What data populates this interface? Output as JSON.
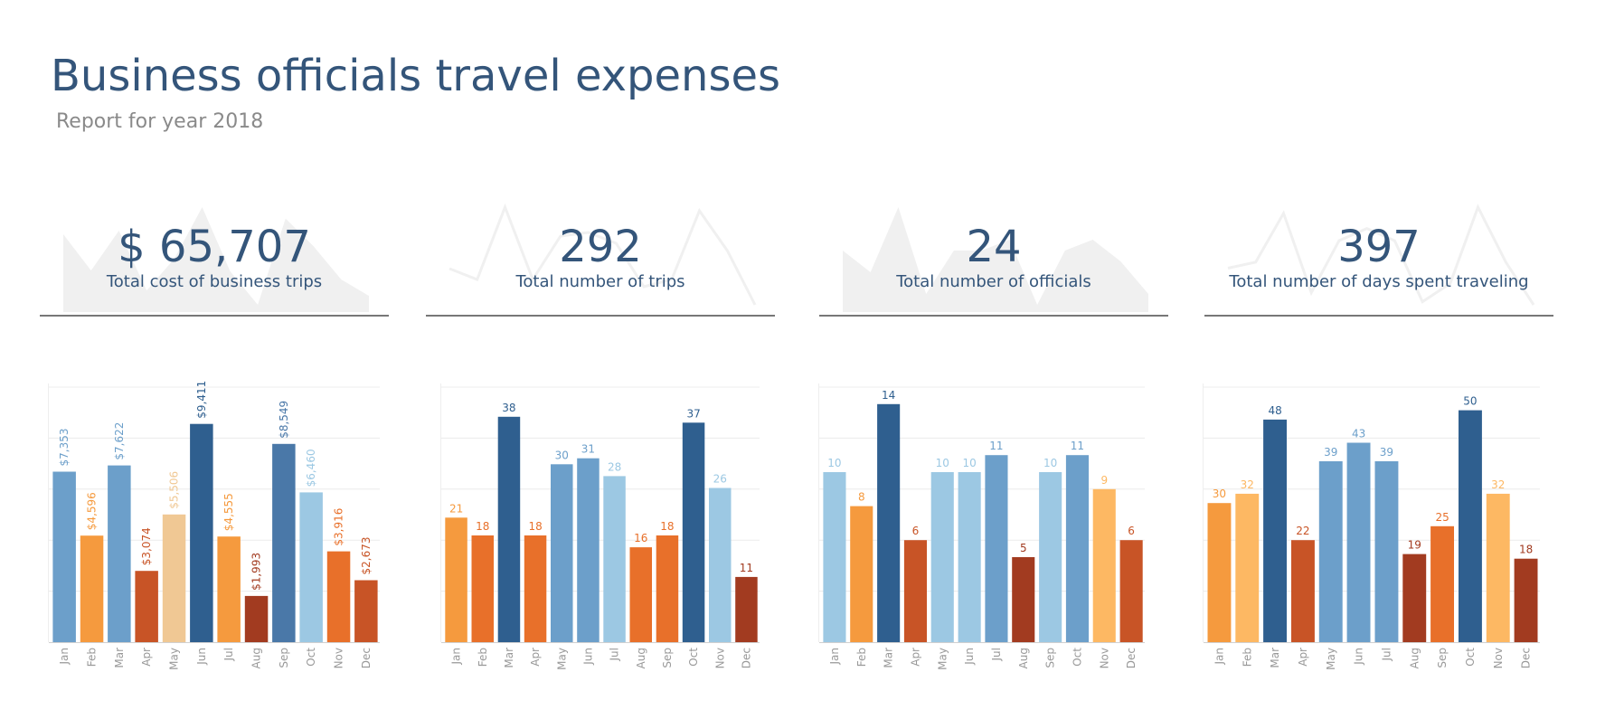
{
  "header": {
    "title": "Business officials travel expenses",
    "subtitle": "Report for  year 2018"
  },
  "kpis": [
    {
      "value": "$ 65,707",
      "label": "Total cost of business trips",
      "spark_style": "area"
    },
    {
      "value": "292",
      "label": "Total number of trips",
      "spark_style": "line"
    },
    {
      "value": "24",
      "label": "Total number of officials",
      "spark_style": "area"
    },
    {
      "value": "397",
      "label": "Total number of days spent traveling",
      "spark_style": "line"
    }
  ],
  "palette": {
    "navy": "#2f5f8f",
    "blue": "#4a78a8",
    "mid_blue": "#6c9fca",
    "light_blue": "#9cc8e3",
    "light_orange": "#fdb863",
    "orange": "#f59a3e",
    "dark_orange": "#e8702a",
    "red_orange": "#c85426",
    "brown": "#a23b20",
    "tan": "#f0c894",
    "spark": "#f0f0f0",
    "axis": "#999999",
    "grid": "#ececec"
  },
  "chart_data": [
    {
      "type": "bar",
      "categories": [
        "Jan",
        "Feb",
        "Mar",
        "Apr",
        "May",
        "Jun",
        "Jul",
        "Aug",
        "Sep",
        "Oct",
        "Nov",
        "Dec"
      ],
      "values": [
        7353,
        4596,
        7622,
        3074,
        5506,
        9411,
        4555,
        1993,
        8549,
        6460,
        3916,
        2673
      ],
      "labels": [
        "$7,353",
        "$4,596",
        "$7,622",
        "$3,074",
        "$5,506",
        "$9,411",
        "$4,555",
        "$1,993",
        "$8,549",
        "$6,460",
        "$3,916",
        "$2,673"
      ],
      "label_orientation": "vertical",
      "colors": [
        "mid_blue",
        "orange",
        "mid_blue",
        "red_orange",
        "tan",
        "navy",
        "orange",
        "brown",
        "blue",
        "light_blue",
        "dark_orange",
        "red_orange"
      ],
      "ylim": [
        0,
        11000
      ],
      "grid": true
    },
    {
      "type": "bar",
      "categories": [
        "Jan",
        "Feb",
        "Mar",
        "Apr",
        "May",
        "Jun",
        "Jul",
        "Aug",
        "Sep",
        "Oct",
        "Nov",
        "Dec"
      ],
      "values": [
        21,
        18,
        38,
        18,
        30,
        31,
        28,
        16,
        18,
        37,
        26,
        11
      ],
      "labels": [
        "21",
        "18",
        "38",
        "18",
        "30",
        "31",
        "28",
        "16",
        "18",
        "37",
        "26",
        "11"
      ],
      "label_orientation": "horizontal",
      "colors": [
        "orange",
        "dark_orange",
        "navy",
        "dark_orange",
        "mid_blue",
        "mid_blue",
        "light_blue",
        "dark_orange",
        "dark_orange",
        "navy",
        "light_blue",
        "brown"
      ],
      "ylim": [
        0,
        43
      ],
      "grid": true
    },
    {
      "type": "bar",
      "categories": [
        "Jan",
        "Feb",
        "Mar",
        "Apr",
        "May",
        "Jun",
        "Jul",
        "Aug",
        "Sep",
        "Oct",
        "Nov",
        "Dec"
      ],
      "values": [
        10,
        8,
        14,
        6,
        10,
        10,
        11,
        5,
        10,
        11,
        9,
        6
      ],
      "labels": [
        "10",
        "8",
        "14",
        "6",
        "10",
        "10",
        "11",
        "5",
        "10",
        "11",
        "9",
        "6"
      ],
      "label_orientation": "horizontal",
      "colors": [
        "light_blue",
        "orange",
        "navy",
        "red_orange",
        "light_blue",
        "light_blue",
        "mid_blue",
        "brown",
        "light_blue",
        "mid_blue",
        "light_orange",
        "red_orange"
      ],
      "ylim": [
        0,
        15
      ],
      "grid": true
    },
    {
      "type": "bar",
      "categories": [
        "Jan",
        "Feb",
        "Mar",
        "Apr",
        "May",
        "Jun",
        "Jul",
        "Aug",
        "Sep",
        "Oct",
        "Nov",
        "Dec"
      ],
      "values": [
        30,
        32,
        48,
        22,
        39,
        43,
        39,
        19,
        25,
        50,
        32,
        18
      ],
      "labels": [
        "30",
        "32",
        "48",
        "22",
        "39",
        "43",
        "39",
        "19",
        "25",
        "50",
        "32",
        "18"
      ],
      "label_orientation": "horizontal",
      "colors": [
        "orange",
        "light_orange",
        "navy",
        "red_orange",
        "mid_blue",
        "mid_blue",
        "mid_blue",
        "brown",
        "dark_orange",
        "navy",
        "light_orange",
        "brown"
      ],
      "ylim": [
        0,
        55
      ],
      "grid": true
    }
  ]
}
